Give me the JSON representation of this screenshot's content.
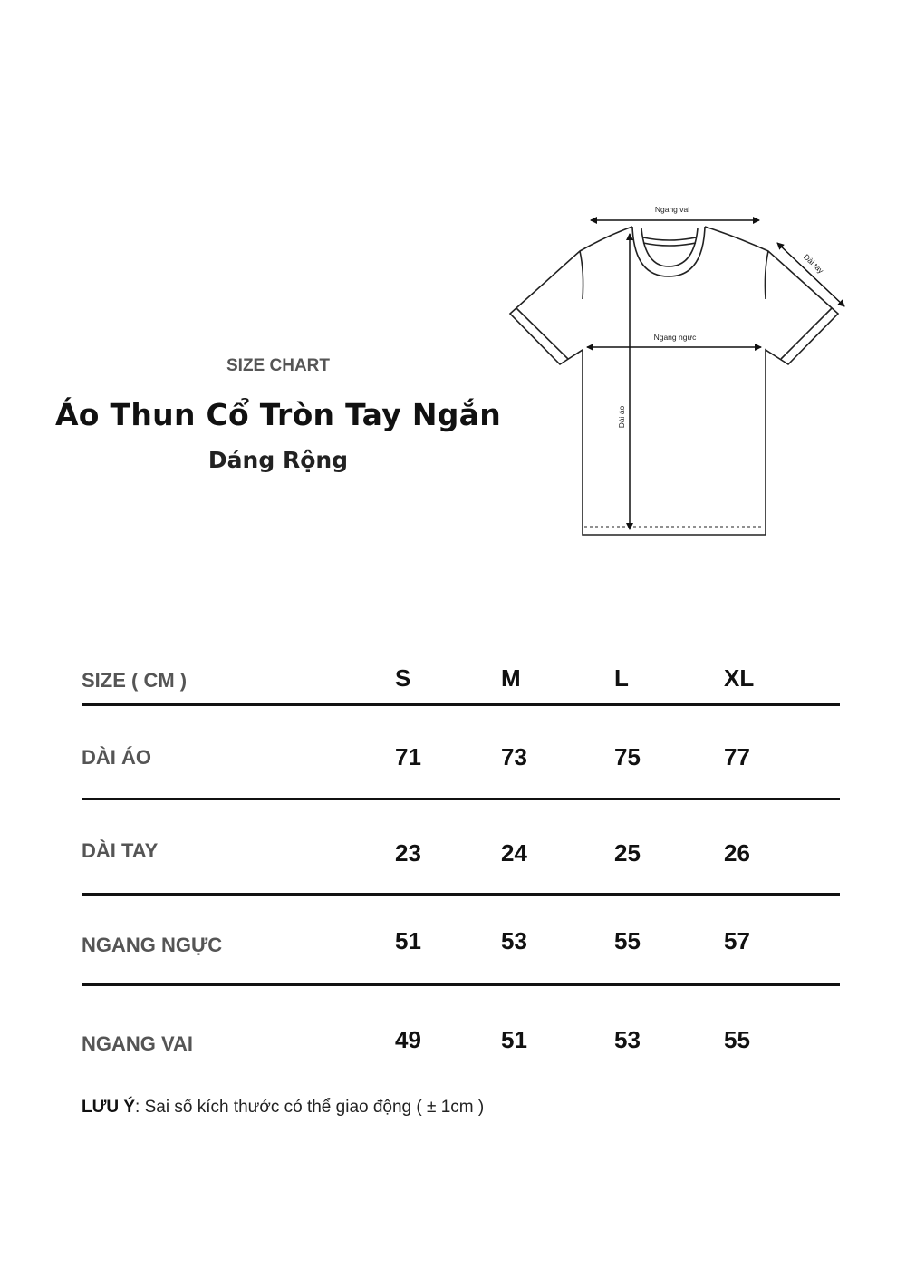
{
  "header": {
    "subtitle": "SIZE CHART",
    "title": "Áo Thun Cổ Tròn Tay Ngắn",
    "fit": "Dáng Rộng"
  },
  "diagram": {
    "labels": {
      "shoulder": "Ngang vai",
      "sleeve": "Dài tay",
      "chest": "Ngang ngực",
      "length": "Dài áo"
    }
  },
  "table": {
    "header_label": "SIZE ( CM )",
    "sizes": [
      "S",
      "M",
      "L",
      "XL"
    ],
    "rows": [
      {
        "label": "DÀI ÁO",
        "values": [
          "71",
          "73",
          "75",
          "77"
        ]
      },
      {
        "label": "DÀI TAY",
        "values": [
          "23",
          "24",
          "25",
          "26"
        ]
      },
      {
        "label": "NGANG NGỰC",
        "values": [
          "51",
          "53",
          "55",
          "57"
        ]
      },
      {
        "label": "NGANG VAI",
        "values": [
          "49",
          "51",
          "53",
          "55"
        ]
      }
    ]
  },
  "note": {
    "label": "LƯU Ý",
    "text": ": Sai số kích thước có thể giao động ( ± 1cm )"
  }
}
